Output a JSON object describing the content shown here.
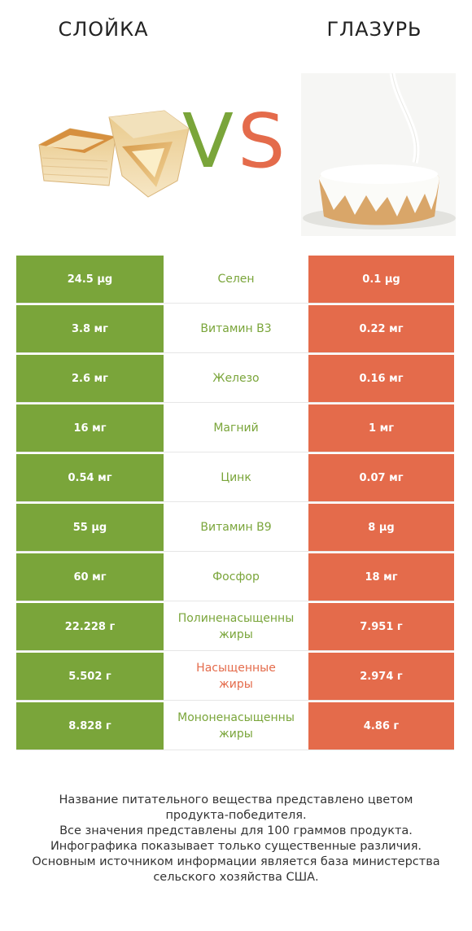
{
  "colors": {
    "left": "#7aa53a",
    "right": "#e46b4b"
  },
  "products": {
    "left": "СЛОЙКА",
    "right": "ГЛАЗУРЬ"
  },
  "vs": {
    "v": "V",
    "s": "S"
  },
  "images": {
    "left": "puff-pastry-image",
    "right": "glazed-cake-image"
  },
  "chart_data": {
    "type": "table",
    "columns": [
      "СЛОЙКА",
      "",
      "ГЛАЗУРЬ"
    ],
    "rows": [
      {
        "nutrient": "Селен",
        "left": "24.5 µg",
        "right": "0.1 µg",
        "winner": "left"
      },
      {
        "nutrient": "Витамин B3",
        "left": "3.8 мг",
        "right": "0.22 мг",
        "winner": "left"
      },
      {
        "nutrient": "Железо",
        "left": "2.6 мг",
        "right": "0.16 мг",
        "winner": "left"
      },
      {
        "nutrient": "Магний",
        "left": "16 мг",
        "right": "1 мг",
        "winner": "left"
      },
      {
        "nutrient": "Цинк",
        "left": "0.54 мг",
        "right": "0.07 мг",
        "winner": "left"
      },
      {
        "nutrient": "Витамин B9",
        "left": "55 µg",
        "right": "8 µg",
        "winner": "left"
      },
      {
        "nutrient": "Фосфор",
        "left": "60 мг",
        "right": "18 мг",
        "winner": "left"
      },
      {
        "nutrient": "Полиненасыщенны\nжиры",
        "left": "22.228 г",
        "right": "7.951 г",
        "winner": "left"
      },
      {
        "nutrient": "Насыщенные\nжиры",
        "left": "5.502 г",
        "right": "2.974 г",
        "winner": "right"
      },
      {
        "nutrient": "Мононенасыщенны\nжиры",
        "left": "8.828 г",
        "right": "4.86 г",
        "winner": "left"
      }
    ]
  },
  "footer": "Название питательного вещества представлено цветом\nпродукта-победителя.\nВсе значения представлены для 100 граммов продукта.\nИнфографика показывает только существенные различия.\nОсновным источником информации является база министерства\nсельского хозяйства США."
}
